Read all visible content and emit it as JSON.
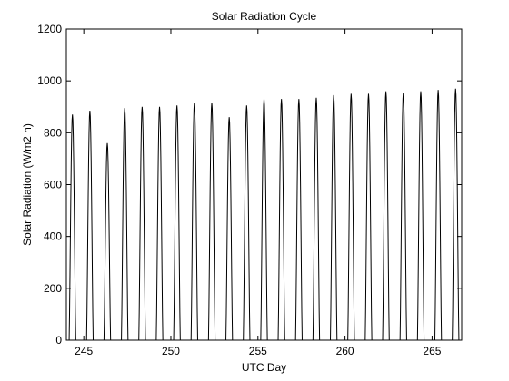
{
  "chart_data": {
    "type": "line",
    "title": "Solar Radiation Cycle",
    "xlabel": "UTC Day",
    "ylabel": "Solar Radiation (W/m2 h)",
    "xlim": [
      244,
      266.7
    ],
    "ylim": [
      0,
      1200
    ],
    "xticks": [
      245,
      250,
      255,
      260,
      265
    ],
    "yticks": [
      0,
      200,
      400,
      600,
      800,
      1000,
      1200
    ],
    "grid": false,
    "line_color": "#000000",
    "axes_color": "#000000",
    "background": "#ffffff",
    "series": [
      {
        "peaks": [
          {
            "day": 244.35,
            "value": 870
          },
          {
            "day": 245.35,
            "value": 885
          },
          {
            "day": 246.35,
            "value": 760
          },
          {
            "day": 247.35,
            "value": 895
          },
          {
            "day": 248.35,
            "value": 900
          },
          {
            "day": 249.35,
            "value": 900
          },
          {
            "day": 250.35,
            "value": 905
          },
          {
            "day": 251.35,
            "value": 915
          },
          {
            "day": 252.35,
            "value": 915
          },
          {
            "day": 253.35,
            "value": 860
          },
          {
            "day": 254.35,
            "value": 905
          },
          {
            "day": 255.35,
            "value": 930
          },
          {
            "day": 256.35,
            "value": 930
          },
          {
            "day": 257.35,
            "value": 930
          },
          {
            "day": 258.35,
            "value": 935
          },
          {
            "day": 259.35,
            "value": 945
          },
          {
            "day": 260.35,
            "value": 950
          },
          {
            "day": 261.35,
            "value": 950
          },
          {
            "day": 262.35,
            "value": 960
          },
          {
            "day": 263.35,
            "value": 955
          },
          {
            "day": 264.35,
            "value": 960
          },
          {
            "day": 265.35,
            "value": 965
          },
          {
            "day": 266.35,
            "value": 970
          }
        ]
      }
    ]
  }
}
